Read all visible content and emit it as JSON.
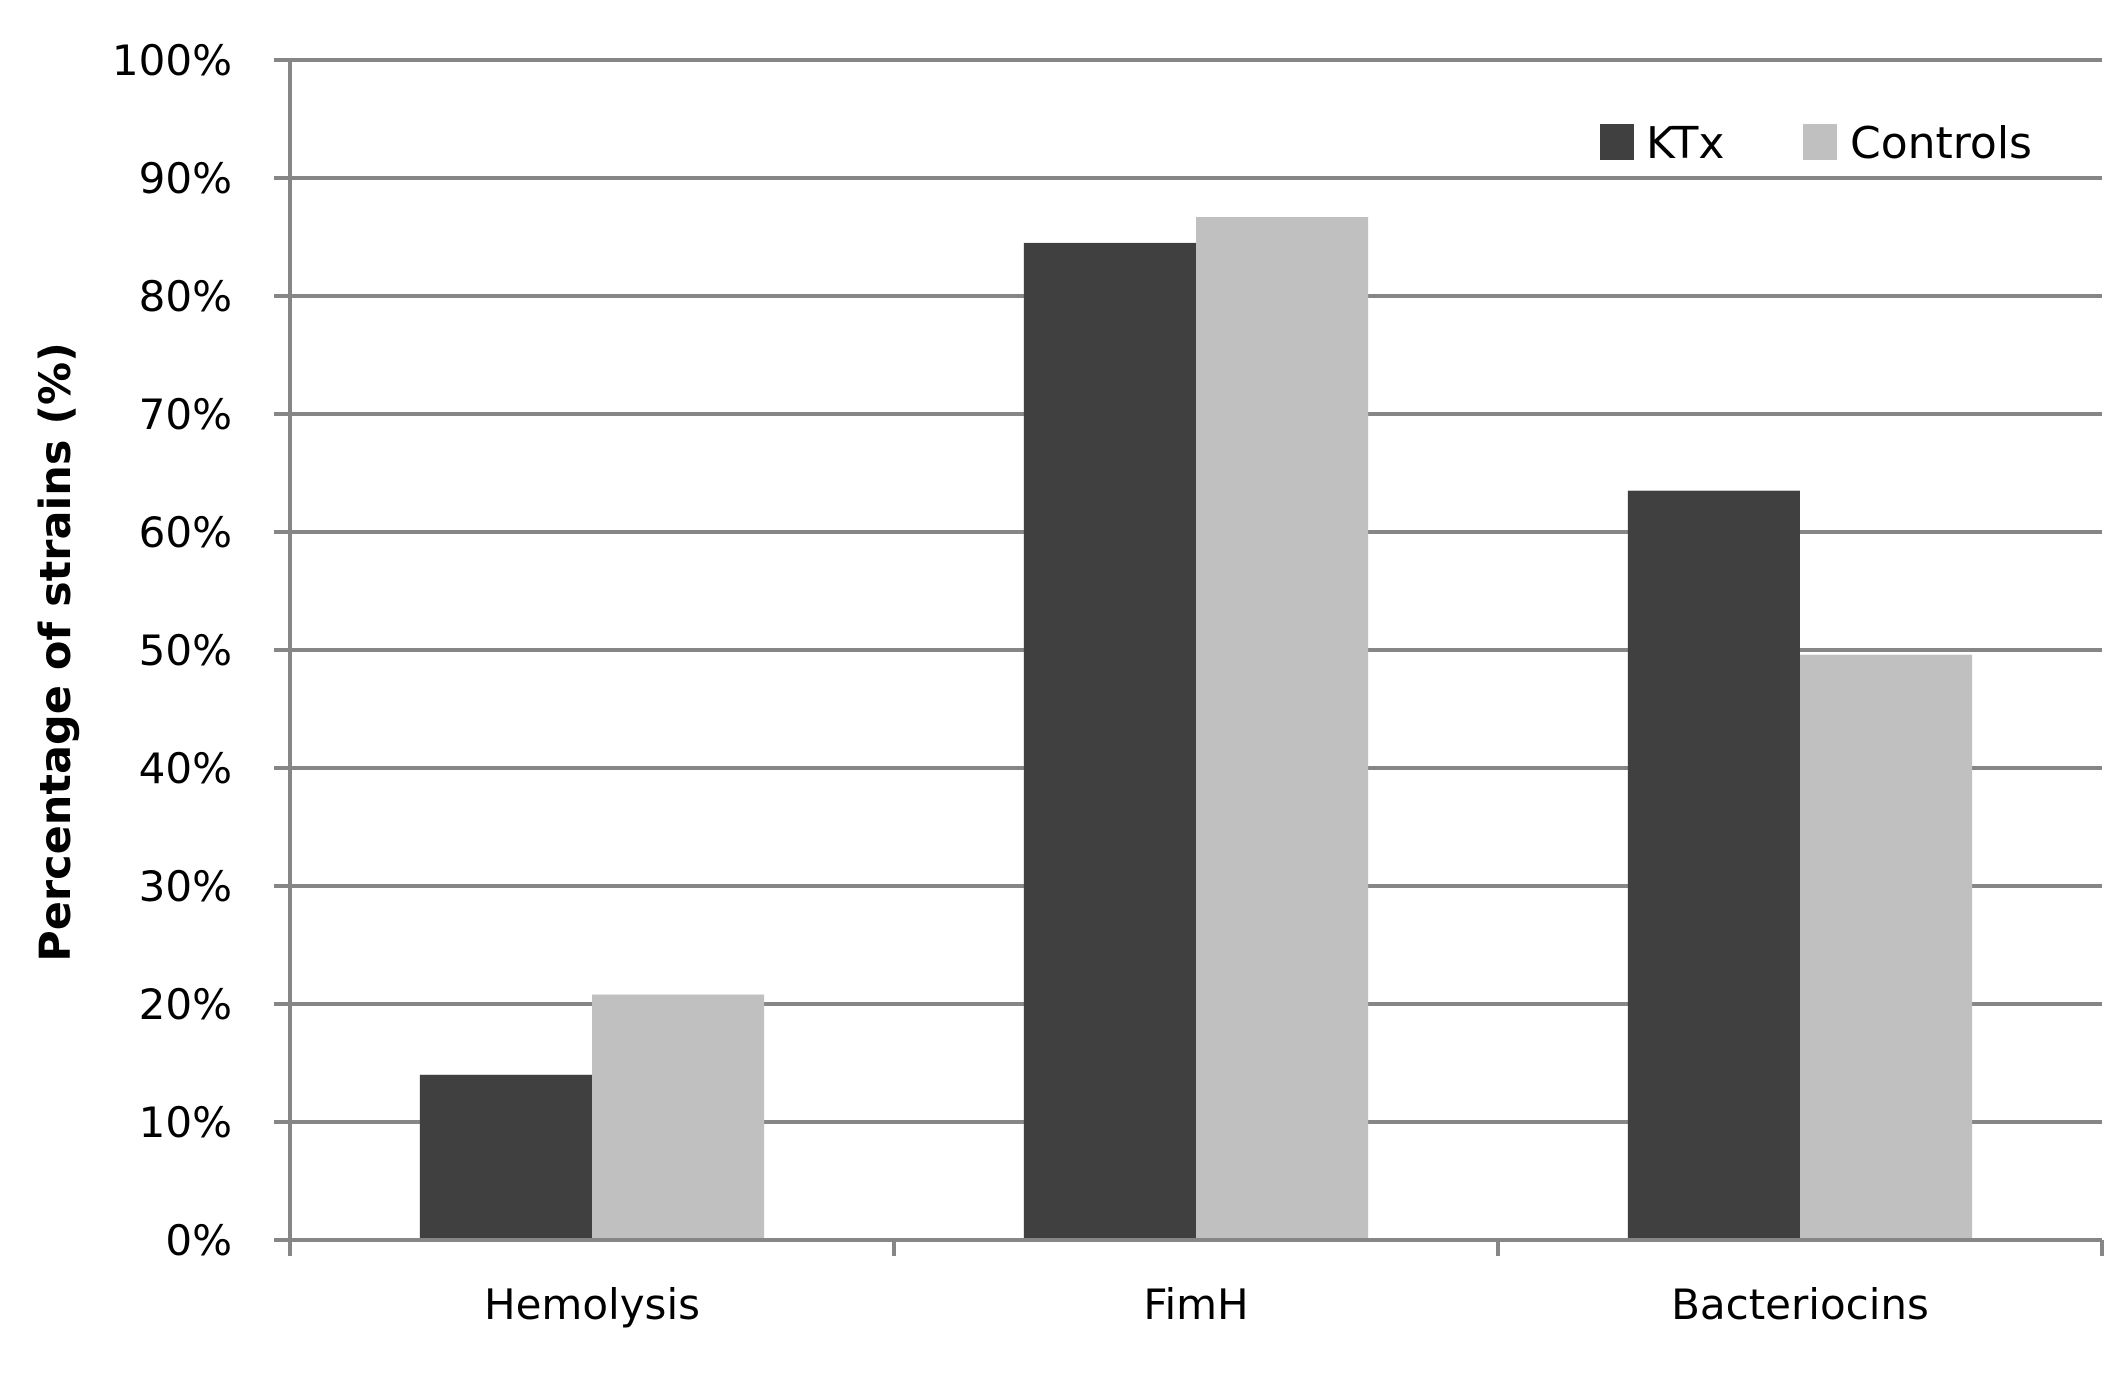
{
  "chart_data": {
    "type": "bar",
    "title": "",
    "xlabel": "",
    "ylabel": "Percentage of strains (%)",
    "categories": [
      "Hemolysis",
      "FimH",
      "Bacteriocins"
    ],
    "series": [
      {
        "name": "KTx",
        "values": [
          14,
          84.5,
          63.5
        ],
        "color": "#404040"
      },
      {
        "name": "Controls",
        "values": [
          20.8,
          86.7,
          49.6
        ],
        "color": "#c0c0c0"
      }
    ],
    "ylim": [
      0,
      100
    ],
    "yticks": [
      0,
      10,
      20,
      30,
      40,
      50,
      60,
      70,
      80,
      90,
      100
    ],
    "ytick_labels": [
      "0%",
      "10%",
      "20%",
      "30%",
      "40%",
      "50%",
      "60%",
      "70%",
      "80%",
      "90%",
      "100%"
    ],
    "grid": true,
    "legend_position": "top-right"
  }
}
